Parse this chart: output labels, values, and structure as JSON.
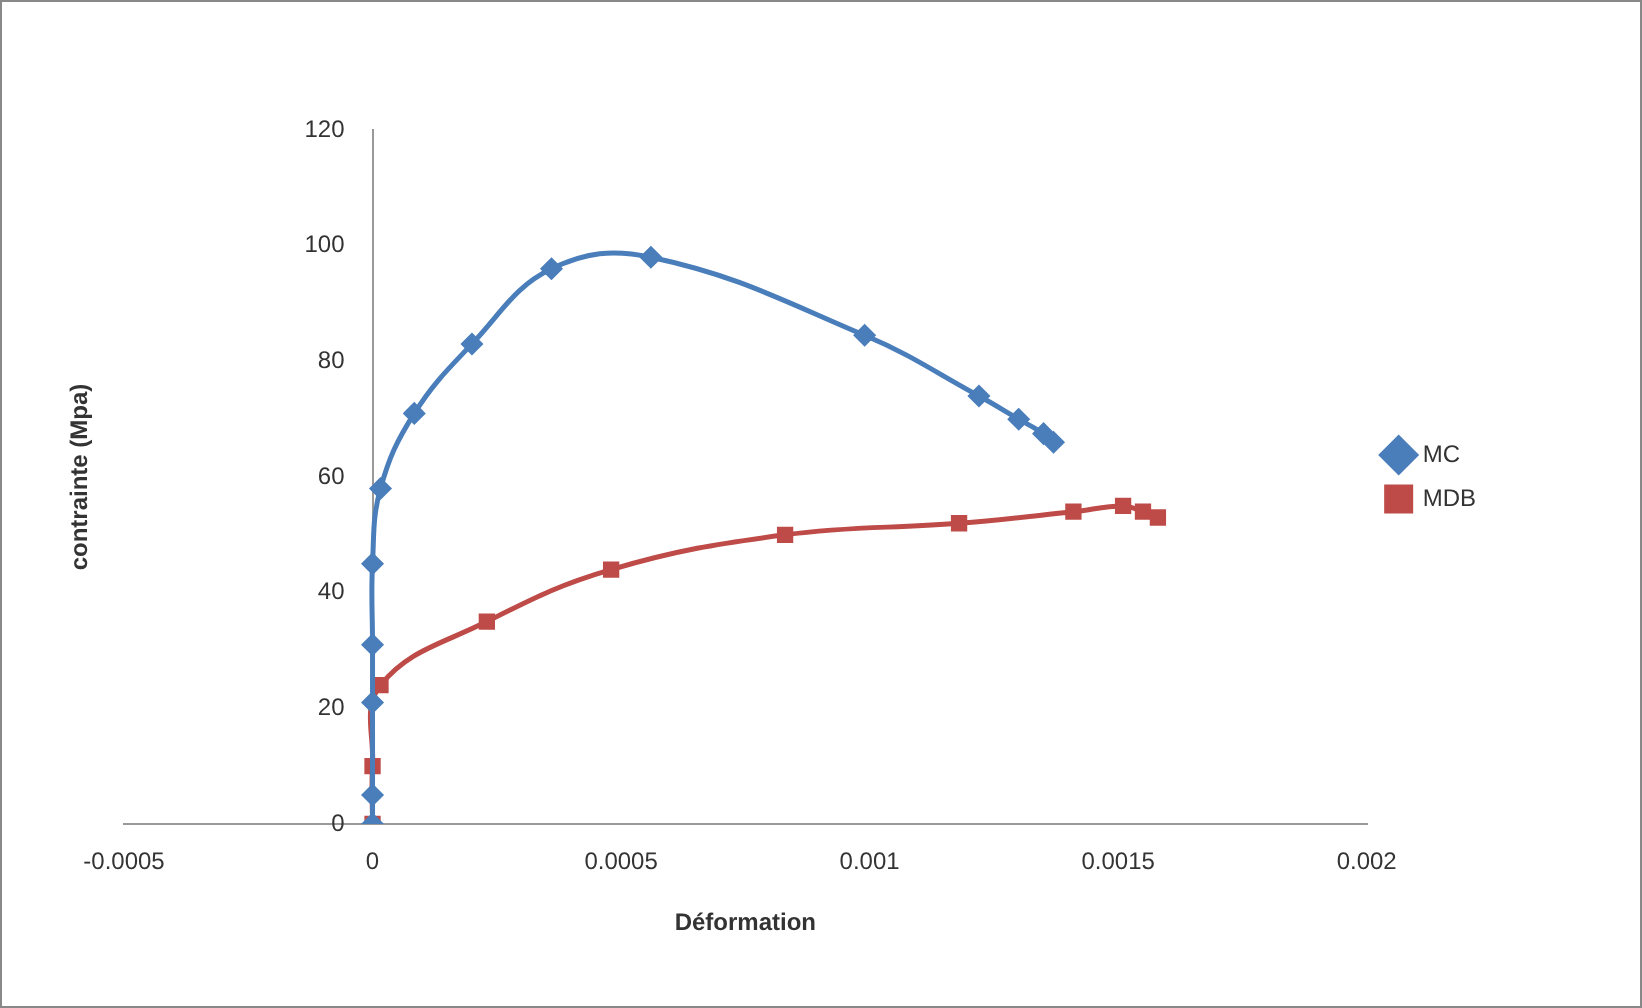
{
  "chart_data": {
    "type": "line",
    "xlabel": "Déformation",
    "ylabel": "contrainte (Mpa)",
    "xlim": [
      -0.0005,
      0.002
    ],
    "xticks": [
      -0.0005,
      0,
      0.0005,
      0.001,
      0.0015,
      0.002
    ],
    "ylim": [
      0,
      120
    ],
    "yticks": [
      0,
      20,
      40,
      60,
      80,
      100,
      120
    ],
    "grid": false,
    "legend": "right",
    "series": [
      {
        "name": "MC",
        "color": "#4a7ebb",
        "marker": "diamond",
        "x": [
          0,
          0,
          0,
          0,
          0,
          1.6e-05,
          8.4e-05,
          0.0002,
          0.00036,
          0.00056,
          0.00099,
          0.00122,
          0.0013,
          0.00135,
          0.00137
        ],
        "values": [
          0,
          5,
          21,
          31,
          45,
          58,
          71,
          83,
          96,
          98,
          84.5,
          74,
          70,
          67.5,
          66
        ]
      },
      {
        "name": "MDB",
        "color": "#be4b48",
        "marker": "square",
        "x": [
          0,
          0,
          1.6e-05,
          0.00023,
          0.00048,
          0.00083,
          0.00118,
          0.00141,
          0.00151,
          0.00155,
          0.00158
        ],
        "values": [
          0,
          10,
          24,
          35,
          44,
          50,
          52,
          54,
          55,
          54,
          53
        ]
      }
    ]
  }
}
